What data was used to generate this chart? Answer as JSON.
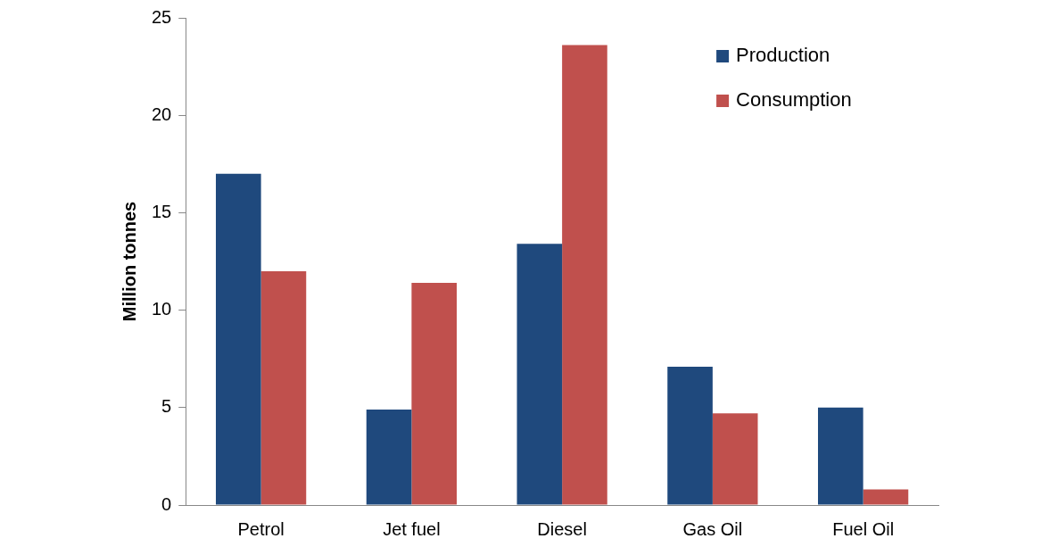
{
  "chart_data": {
    "type": "bar",
    "ylabel": "Million tonnes",
    "categories": [
      "Petrol",
      "Jet fuel",
      "Diesel",
      "Gas Oil",
      "Fuel Oil"
    ],
    "series": [
      {
        "name": "Production",
        "color": "#1f497d",
        "values": [
          17.0,
          4.9,
          13.4,
          7.1,
          5.0
        ]
      },
      {
        "name": "Consumption",
        "color": "#c0504d",
        "values": [
          12.0,
          11.4,
          23.6,
          4.7,
          0.8
        ]
      }
    ],
    "ylim": [
      0,
      25
    ],
    "yticks": [
      0,
      5,
      10,
      15,
      20,
      25
    ],
    "grid": false,
    "legend": "top right"
  }
}
